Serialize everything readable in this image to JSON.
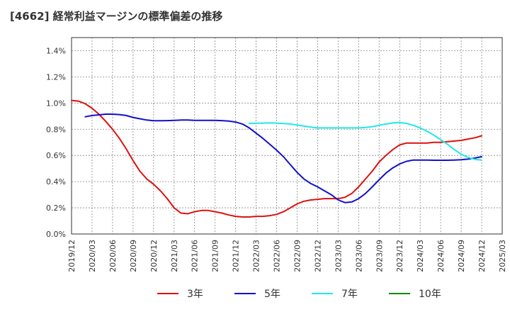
{
  "chart_data": {
    "type": "line",
    "title": "[4662]  経常利益マージンの標準偏差の推移",
    "xlabel": "",
    "ylabel": "",
    "x_ticks": [
      "2019/12",
      "2020/03",
      "2020/06",
      "2020/09",
      "2020/12",
      "2021/03",
      "2021/06",
      "2021/09",
      "2021/12",
      "2022/03",
      "2022/06",
      "2022/09",
      "2022/12",
      "2023/03",
      "2023/06",
      "2023/09",
      "2023/12",
      "2024/03",
      "2024/06",
      "2024/09",
      "2024/12",
      "2025/03"
    ],
    "y_ticks": [
      "0.0%",
      "0.2%",
      "0.4%",
      "0.6%",
      "0.8%",
      "1.0%",
      "1.2%",
      "1.4%"
    ],
    "ylim": [
      0,
      1.5
    ],
    "grid": true,
    "legend_position": "bottom",
    "series": [
      {
        "name": "3年",
        "color": "#dd1111",
        "points": [
          [
            "2019/12",
            1.02
          ],
          [
            "2020/01",
            1.015
          ],
          [
            "2020/02",
            0.995
          ],
          [
            "2020/03",
            0.96
          ],
          [
            "2020/04",
            0.915
          ],
          [
            "2020/05",
            0.86
          ],
          [
            "2020/06",
            0.8
          ],
          [
            "2020/07",
            0.73
          ],
          [
            "2020/08",
            0.65
          ],
          [
            "2020/09",
            0.56
          ],
          [
            "2020/10",
            0.48
          ],
          [
            "2020/11",
            0.42
          ],
          [
            "2020/12",
            0.38
          ],
          [
            "2021/01",
            0.33
          ],
          [
            "2021/02",
            0.27
          ],
          [
            "2021/03",
            0.2
          ],
          [
            "2021/04",
            0.16
          ],
          [
            "2021/05",
            0.155
          ],
          [
            "2021/06",
            0.17
          ],
          [
            "2021/07",
            0.18
          ],
          [
            "2021/08",
            0.18
          ],
          [
            "2021/09",
            0.17
          ],
          [
            "2021/10",
            0.16
          ],
          [
            "2021/11",
            0.145
          ],
          [
            "2021/12",
            0.135
          ],
          [
            "2022/01",
            0.13
          ],
          [
            "2022/02",
            0.13
          ],
          [
            "2022/03",
            0.135
          ],
          [
            "2022/04",
            0.135
          ],
          [
            "2022/05",
            0.14
          ],
          [
            "2022/06",
            0.15
          ],
          [
            "2022/07",
            0.17
          ],
          [
            "2022/08",
            0.2
          ],
          [
            "2022/09",
            0.23
          ],
          [
            "2022/10",
            0.25
          ],
          [
            "2022/11",
            0.26
          ],
          [
            "2022/12",
            0.265
          ],
          [
            "2023/01",
            0.27
          ],
          [
            "2023/02",
            0.27
          ],
          [
            "2023/03",
            0.27
          ],
          [
            "2023/04",
            0.28
          ],
          [
            "2023/05",
            0.31
          ],
          [
            "2023/06",
            0.36
          ],
          [
            "2023/07",
            0.42
          ],
          [
            "2023/08",
            0.48
          ],
          [
            "2023/09",
            0.55
          ],
          [
            "2023/10",
            0.6
          ],
          [
            "2023/11",
            0.645
          ],
          [
            "2023/12",
            0.68
          ],
          [
            "2024/01",
            0.695
          ],
          [
            "2024/02",
            0.695
          ],
          [
            "2024/03",
            0.695
          ],
          [
            "2024/04",
            0.695
          ],
          [
            "2024/05",
            0.7
          ],
          [
            "2024/06",
            0.7
          ],
          [
            "2024/07",
            0.705
          ],
          [
            "2024/08",
            0.71
          ],
          [
            "2024/09",
            0.715
          ],
          [
            "2024/10",
            0.725
          ],
          [
            "2024/11",
            0.735
          ],
          [
            "2024/12",
            0.75
          ]
        ]
      },
      {
        "name": "5年",
        "color": "#1111cc",
        "points": [
          [
            "2020/02",
            0.895
          ],
          [
            "2020/03",
            0.905
          ],
          [
            "2020/04",
            0.91
          ],
          [
            "2020/05",
            0.915
          ],
          [
            "2020/06",
            0.915
          ],
          [
            "2020/07",
            0.912
          ],
          [
            "2020/08",
            0.905
          ],
          [
            "2020/09",
            0.89
          ],
          [
            "2020/10",
            0.88
          ],
          [
            "2020/11",
            0.87
          ],
          [
            "2020/12",
            0.865
          ],
          [
            "2021/01",
            0.865
          ],
          [
            "2021/02",
            0.866
          ],
          [
            "2021/03",
            0.868
          ],
          [
            "2021/04",
            0.87
          ],
          [
            "2021/05",
            0.87
          ],
          [
            "2021/06",
            0.868
          ],
          [
            "2021/07",
            0.868
          ],
          [
            "2021/08",
            0.868
          ],
          [
            "2021/09",
            0.868
          ],
          [
            "2021/10",
            0.866
          ],
          [
            "2021/11",
            0.862
          ],
          [
            "2021/12",
            0.855
          ],
          [
            "2022/01",
            0.84
          ],
          [
            "2022/02",
            0.81
          ],
          [
            "2022/03",
            0.77
          ],
          [
            "2022/04",
            0.73
          ],
          [
            "2022/05",
            0.685
          ],
          [
            "2022/06",
            0.64
          ],
          [
            "2022/07",
            0.59
          ],
          [
            "2022/08",
            0.53
          ],
          [
            "2022/09",
            0.47
          ],
          [
            "2022/10",
            0.42
          ],
          [
            "2022/11",
            0.385
          ],
          [
            "2022/12",
            0.36
          ],
          [
            "2023/01",
            0.33
          ],
          [
            "2023/02",
            0.3
          ],
          [
            "2023/03",
            0.26
          ],
          [
            "2023/04",
            0.24
          ],
          [
            "2023/05",
            0.245
          ],
          [
            "2023/06",
            0.27
          ],
          [
            "2023/07",
            0.31
          ],
          [
            "2023/08",
            0.36
          ],
          [
            "2023/09",
            0.415
          ],
          [
            "2023/10",
            0.465
          ],
          [
            "2023/11",
            0.505
          ],
          [
            "2023/12",
            0.535
          ],
          [
            "2024/01",
            0.555
          ],
          [
            "2024/02",
            0.565
          ],
          [
            "2024/03",
            0.565
          ],
          [
            "2024/04",
            0.565
          ],
          [
            "2024/05",
            0.563
          ],
          [
            "2024/06",
            0.563
          ],
          [
            "2024/07",
            0.563
          ],
          [
            "2024/08",
            0.565
          ],
          [
            "2024/09",
            0.567
          ],
          [
            "2024/10",
            0.572
          ],
          [
            "2024/11",
            0.58
          ],
          [
            "2024/12",
            0.59
          ]
        ]
      },
      {
        "name": "7年",
        "color": "#22e8e8",
        "points": [
          [
            "2022/02",
            0.845
          ],
          [
            "2022/03",
            0.846
          ],
          [
            "2022/04",
            0.847
          ],
          [
            "2022/05",
            0.848
          ],
          [
            "2022/06",
            0.847
          ],
          [
            "2022/07",
            0.844
          ],
          [
            "2022/08",
            0.84
          ],
          [
            "2022/09",
            0.832
          ],
          [
            "2022/10",
            0.824
          ],
          [
            "2022/11",
            0.816
          ],
          [
            "2022/12",
            0.81
          ],
          [
            "2023/01",
            0.81
          ],
          [
            "2023/02",
            0.81
          ],
          [
            "2023/03",
            0.81
          ],
          [
            "2023/04",
            0.81
          ],
          [
            "2023/05",
            0.81
          ],
          [
            "2023/06",
            0.81
          ],
          [
            "2023/07",
            0.814
          ],
          [
            "2023/08",
            0.82
          ],
          [
            "2023/09",
            0.83
          ],
          [
            "2023/10",
            0.84
          ],
          [
            "2023/11",
            0.848
          ],
          [
            "2023/12",
            0.852
          ],
          [
            "2024/01",
            0.845
          ],
          [
            "2024/02",
            0.83
          ],
          [
            "2024/03",
            0.81
          ],
          [
            "2024/04",
            0.785
          ],
          [
            "2024/05",
            0.755
          ],
          [
            "2024/06",
            0.72
          ],
          [
            "2024/07",
            0.685
          ],
          [
            "2024/08",
            0.645
          ],
          [
            "2024/09",
            0.61
          ],
          [
            "2024/10",
            0.585
          ],
          [
            "2024/11",
            0.57
          ],
          [
            "2024/12",
            0.565
          ]
        ]
      },
      {
        "name": "10年",
        "color": "#118811",
        "points": []
      }
    ]
  }
}
